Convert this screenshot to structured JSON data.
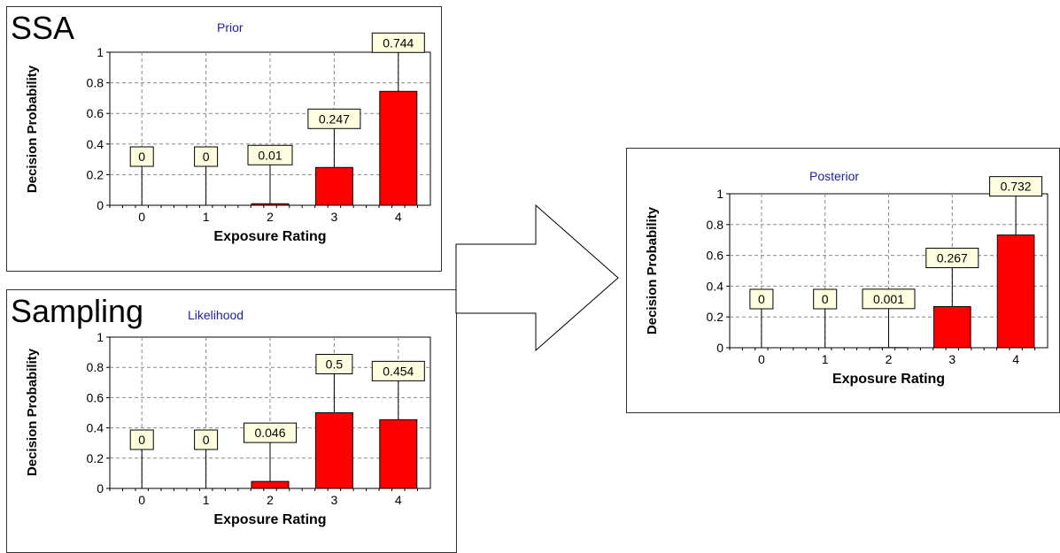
{
  "charts": [
    {
      "id": "prior",
      "heading": "SSA",
      "subtitle": "Prior",
      "colors": {
        "bar": "#ff0000",
        "bar_stroke": "#000000",
        "label_bg": "#ffffe0",
        "subtitle": "#2020a0"
      }
    },
    {
      "id": "likelihood",
      "heading": "Sampling",
      "subtitle": "Likelihood"
    },
    {
      "id": "posterior",
      "heading": "",
      "subtitle": "Posterior"
    }
  ],
  "chart_data": [
    {
      "type": "bar",
      "title": "Prior",
      "xlabel": "Exposure Rating",
      "ylabel": "Decision Probability",
      "categories": [
        "0",
        "1",
        "2",
        "3",
        "4"
      ],
      "values": [
        0,
        0,
        0.01,
        0.247,
        0.744
      ],
      "value_labels": [
        "0",
        "0",
        "0.01",
        "0.247",
        "0.744"
      ],
      "yticks": [
        "0",
        "0.2",
        "0.4",
        "0.6",
        "0.8",
        "1"
      ],
      "ylim": [
        0,
        1
      ],
      "grid": true
    },
    {
      "type": "bar",
      "title": "Likelihood",
      "xlabel": "Exposure Rating",
      "ylabel": "Decision Probability",
      "categories": [
        "0",
        "1",
        "2",
        "3",
        "4"
      ],
      "values": [
        0,
        0,
        0.046,
        0.5,
        0.454
      ],
      "value_labels": [
        "0",
        "0",
        "0.046",
        "0.5",
        "0.454"
      ],
      "yticks": [
        "0",
        "0.2",
        "0.4",
        "0.6",
        "0.8",
        "1"
      ],
      "ylim": [
        0,
        1
      ],
      "grid": true
    },
    {
      "type": "bar",
      "title": "Posterior",
      "xlabel": "Exposure Rating",
      "ylabel": "Decision Probability",
      "categories": [
        "0",
        "1",
        "2",
        "3",
        "4"
      ],
      "values": [
        0,
        0,
        0.001,
        0.267,
        0.732
      ],
      "value_labels": [
        "0",
        "0",
        "0.001",
        "0.267",
        "0.732"
      ],
      "yticks": [
        "0",
        "0.2",
        "0.4",
        "0.6",
        "0.8",
        "1"
      ],
      "ylim": [
        0,
        1
      ],
      "grid": true
    }
  ]
}
